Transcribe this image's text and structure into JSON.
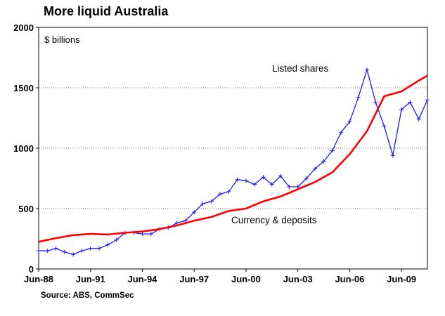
{
  "chart_data": {
    "type": "line",
    "title": "More liquid Australia",
    "unit_label": "$ billions",
    "source": "Source: ABS, CommSec",
    "ylim": [
      0,
      2000
    ],
    "y_ticks": [
      "0",
      "500",
      "1000",
      "1500",
      "2000"
    ],
    "x_tick_labels": [
      "Jun-88",
      "Jun-91",
      "Jun-94",
      "Jun-97",
      "Jun-00",
      "Jun-03",
      "Jun-06",
      "Jun-09"
    ],
    "x_range": [
      "Jun-88",
      "Dec-10"
    ],
    "grid": "horizontal dotted",
    "series": [
      {
        "name": "Listed shares",
        "color": "#1a1aff",
        "marker": "plus",
        "x": [
          "Jun-88",
          "Dec-88",
          "Jun-89",
          "Dec-89",
          "Jun-90",
          "Dec-90",
          "Jun-91",
          "Dec-91",
          "Jun-92",
          "Dec-92",
          "Jun-93",
          "Dec-93",
          "Jun-94",
          "Dec-94",
          "Jun-95",
          "Dec-95",
          "Jun-96",
          "Dec-96",
          "Jun-97",
          "Dec-97",
          "Jun-98",
          "Dec-98",
          "Jun-99",
          "Dec-99",
          "Jun-00",
          "Dec-00",
          "Jun-01",
          "Dec-01",
          "Jun-02",
          "Dec-02",
          "Jun-03",
          "Dec-03",
          "Jun-04",
          "Dec-04",
          "Jun-05",
          "Dec-05",
          "Jun-06",
          "Dec-06",
          "Jun-07",
          "Dec-07",
          "Jun-08",
          "Dec-08",
          "Jun-09",
          "Dec-09",
          "Jun-10",
          "Dec-10"
        ],
        "values": [
          150,
          150,
          170,
          140,
          120,
          150,
          170,
          170,
          200,
          240,
          300,
          300,
          290,
          290,
          330,
          340,
          380,
          400,
          470,
          540,
          560,
          620,
          640,
          740,
          730,
          700,
          760,
          700,
          770,
          680,
          680,
          750,
          830,
          890,
          980,
          1130,
          1220,
          1420,
          1650,
          1380,
          1180,
          940,
          1320,
          1380,
          1240,
          1400
        ]
      },
      {
        "name": "Currency & deposits",
        "color": "#ff0000",
        "x": [
          "Jun-88",
          "Jun-89",
          "Jun-90",
          "Jun-91",
          "Jun-92",
          "Jun-93",
          "Jun-94",
          "Jun-95",
          "Jun-96",
          "Jun-97",
          "Jun-98",
          "Jun-99",
          "Jun-00",
          "Jun-01",
          "Jun-02",
          "Jun-03",
          "Jun-04",
          "Jun-05",
          "Jun-06",
          "Jun-07",
          "Jun-08",
          "Jun-09",
          "Jun-10",
          "Dec-10"
        ],
        "values": [
          225,
          255,
          280,
          290,
          285,
          300,
          310,
          330,
          360,
          400,
          430,
          480,
          500,
          560,
          600,
          660,
          720,
          800,
          950,
          1140,
          1430,
          1470,
          1560,
          1600
        ]
      }
    ]
  }
}
